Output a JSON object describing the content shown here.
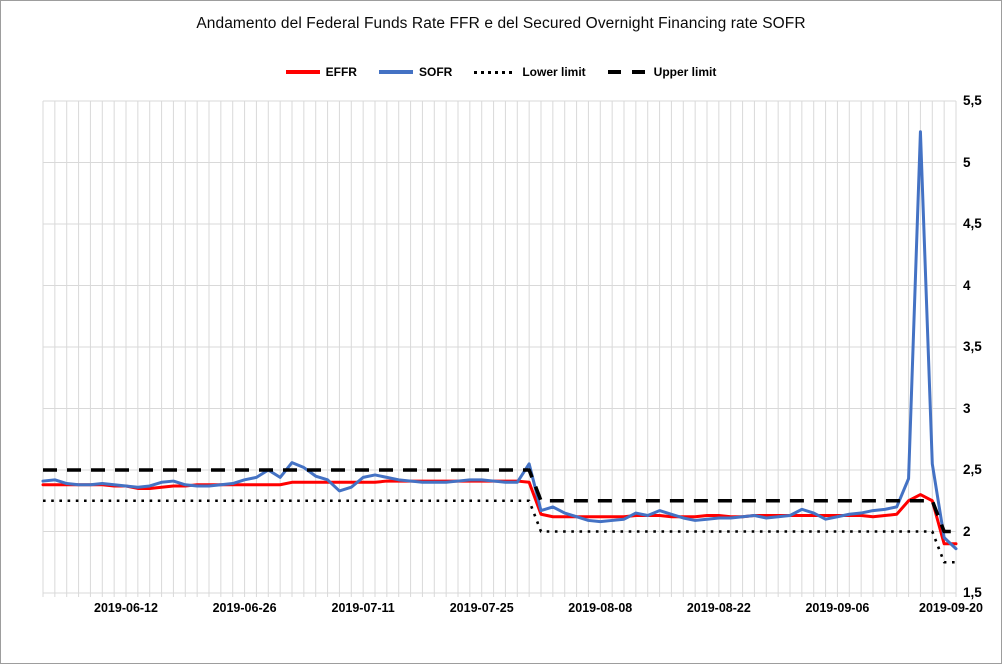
{
  "title": "Andamento del Federal Funds Rate FFR e del Secured Overnight Financing rate SOFR",
  "legend": [
    {
      "label": "EFFR",
      "color": "#ff0000",
      "style": "solid"
    },
    {
      "label": "SOFR",
      "color": "#4472c4",
      "style": "solid"
    },
    {
      "label": "Lower limit",
      "color": "#000000",
      "style": "dotted"
    },
    {
      "label": "Upper limit",
      "color": "#000000",
      "style": "dashed"
    }
  ],
  "colors": {
    "effr": "#ff0000",
    "sofr": "#4472c4",
    "limits": "#000000",
    "gridline": "#d9d9d9"
  },
  "chart_data": {
    "type": "line",
    "grid": true,
    "legend_position": "top",
    "ylim": [
      1.5,
      5.5
    ],
    "ytick_step": 0.5,
    "ytick_labels": [
      "1,5",
      "2",
      "2,5",
      "3",
      "3,5",
      "4",
      "4,5",
      "5",
      "5,5"
    ],
    "yaxis_side": "right",
    "xtick_indices": [
      7,
      17,
      27,
      37,
      47,
      57,
      67,
      77
    ],
    "xtick_labels": [
      "2019-06-12",
      "2019-06-26",
      "2019-07-11",
      "2019-07-25",
      "2019-08-08",
      "2019-08-22",
      "2019-09-06",
      "2019-09-20"
    ],
    "x": [
      "2019-06-03",
      "2019-06-04",
      "2019-06-05",
      "2019-06-06",
      "2019-06-07",
      "2019-06-10",
      "2019-06-11",
      "2019-06-12",
      "2019-06-13",
      "2019-06-14",
      "2019-06-17",
      "2019-06-18",
      "2019-06-19",
      "2019-06-20",
      "2019-06-21",
      "2019-06-24",
      "2019-06-25",
      "2019-06-26",
      "2019-06-27",
      "2019-06-28",
      "2019-07-01",
      "2019-07-02",
      "2019-07-03",
      "2019-07-05",
      "2019-07-08",
      "2019-07-09",
      "2019-07-10",
      "2019-07-11",
      "2019-07-12",
      "2019-07-15",
      "2019-07-16",
      "2019-07-17",
      "2019-07-18",
      "2019-07-19",
      "2019-07-22",
      "2019-07-23",
      "2019-07-24",
      "2019-07-25",
      "2019-07-26",
      "2019-07-29",
      "2019-07-30",
      "2019-07-31",
      "2019-08-01",
      "2019-08-02",
      "2019-08-05",
      "2019-08-06",
      "2019-08-07",
      "2019-08-08",
      "2019-08-09",
      "2019-08-12",
      "2019-08-13",
      "2019-08-14",
      "2019-08-15",
      "2019-08-16",
      "2019-08-19",
      "2019-08-20",
      "2019-08-21",
      "2019-08-22",
      "2019-08-23",
      "2019-08-26",
      "2019-08-27",
      "2019-08-28",
      "2019-08-29",
      "2019-08-30",
      "2019-09-03",
      "2019-09-04",
      "2019-09-05",
      "2019-09-06",
      "2019-09-09",
      "2019-09-10",
      "2019-09-11",
      "2019-09-12",
      "2019-09-13",
      "2019-09-16",
      "2019-09-17",
      "2019-09-18",
      "2019-09-19",
      "2019-09-20"
    ],
    "series": [
      {
        "name": "EFFR",
        "color": "#ff0000",
        "style": "solid",
        "values": [
          2.38,
          2.38,
          2.38,
          2.38,
          2.38,
          2.38,
          2.37,
          2.37,
          2.35,
          2.35,
          2.36,
          2.37,
          2.37,
          2.38,
          2.38,
          2.38,
          2.38,
          2.38,
          2.38,
          2.38,
          2.38,
          2.4,
          2.4,
          2.4,
          2.4,
          2.4,
          2.4,
          2.4,
          2.4,
          2.41,
          2.41,
          2.41,
          2.41,
          2.41,
          2.41,
          2.41,
          2.41,
          2.41,
          2.41,
          2.41,
          2.41,
          2.4,
          2.14,
          2.12,
          2.12,
          2.12,
          2.12,
          2.12,
          2.12,
          2.12,
          2.13,
          2.13,
          2.13,
          2.12,
          2.12,
          2.12,
          2.13,
          2.13,
          2.12,
          2.12,
          2.13,
          2.13,
          2.13,
          2.13,
          2.13,
          2.13,
          2.13,
          2.13,
          2.13,
          2.13,
          2.12,
          2.13,
          2.14,
          2.25,
          2.3,
          2.25,
          1.9,
          1.9
        ]
      },
      {
        "name": "SOFR",
        "color": "#4472c4",
        "style": "solid",
        "values": [
          2.41,
          2.42,
          2.39,
          2.38,
          2.38,
          2.39,
          2.38,
          2.37,
          2.36,
          2.37,
          2.4,
          2.41,
          2.38,
          2.37,
          2.37,
          2.38,
          2.39,
          2.42,
          2.44,
          2.5,
          2.44,
          2.56,
          2.52,
          2.45,
          2.42,
          2.33,
          2.36,
          2.44,
          2.46,
          2.44,
          2.42,
          2.41,
          2.4,
          2.4,
          2.4,
          2.41,
          2.42,
          2.42,
          2.41,
          2.4,
          2.4,
          2.55,
          2.17,
          2.2,
          2.15,
          2.12,
          2.09,
          2.08,
          2.09,
          2.1,
          2.15,
          2.13,
          2.17,
          2.14,
          2.11,
          2.09,
          2.1,
          2.11,
          2.11,
          2.12,
          2.13,
          2.11,
          2.12,
          2.13,
          2.18,
          2.15,
          2.1,
          2.12,
          2.14,
          2.15,
          2.17,
          2.18,
          2.2,
          2.43,
          5.25,
          2.55,
          1.95,
          1.86
        ]
      },
      {
        "name": "Lower limit",
        "color": "#000000",
        "style": "dotted",
        "values": [
          2.25,
          2.25,
          2.25,
          2.25,
          2.25,
          2.25,
          2.25,
          2.25,
          2.25,
          2.25,
          2.25,
          2.25,
          2.25,
          2.25,
          2.25,
          2.25,
          2.25,
          2.25,
          2.25,
          2.25,
          2.25,
          2.25,
          2.25,
          2.25,
          2.25,
          2.25,
          2.25,
          2.25,
          2.25,
          2.25,
          2.25,
          2.25,
          2.25,
          2.25,
          2.25,
          2.25,
          2.25,
          2.25,
          2.25,
          2.25,
          2.25,
          2.25,
          2.0,
          2.0,
          2.0,
          2.0,
          2.0,
          2.0,
          2.0,
          2.0,
          2.0,
          2.0,
          2.0,
          2.0,
          2.0,
          2.0,
          2.0,
          2.0,
          2.0,
          2.0,
          2.0,
          2.0,
          2.0,
          2.0,
          2.0,
          2.0,
          2.0,
          2.0,
          2.0,
          2.0,
          2.0,
          2.0,
          2.0,
          2.0,
          2.0,
          2.0,
          1.75,
          1.75
        ]
      },
      {
        "name": "Upper limit",
        "color": "#000000",
        "style": "dashed",
        "values": [
          2.5,
          2.5,
          2.5,
          2.5,
          2.5,
          2.5,
          2.5,
          2.5,
          2.5,
          2.5,
          2.5,
          2.5,
          2.5,
          2.5,
          2.5,
          2.5,
          2.5,
          2.5,
          2.5,
          2.5,
          2.5,
          2.5,
          2.5,
          2.5,
          2.5,
          2.5,
          2.5,
          2.5,
          2.5,
          2.5,
          2.5,
          2.5,
          2.5,
          2.5,
          2.5,
          2.5,
          2.5,
          2.5,
          2.5,
          2.5,
          2.5,
          2.5,
          2.25,
          2.25,
          2.25,
          2.25,
          2.25,
          2.25,
          2.25,
          2.25,
          2.25,
          2.25,
          2.25,
          2.25,
          2.25,
          2.25,
          2.25,
          2.25,
          2.25,
          2.25,
          2.25,
          2.25,
          2.25,
          2.25,
          2.25,
          2.25,
          2.25,
          2.25,
          2.25,
          2.25,
          2.25,
          2.25,
          2.25,
          2.25,
          2.25,
          2.25,
          2.0,
          2.0
        ]
      }
    ]
  }
}
